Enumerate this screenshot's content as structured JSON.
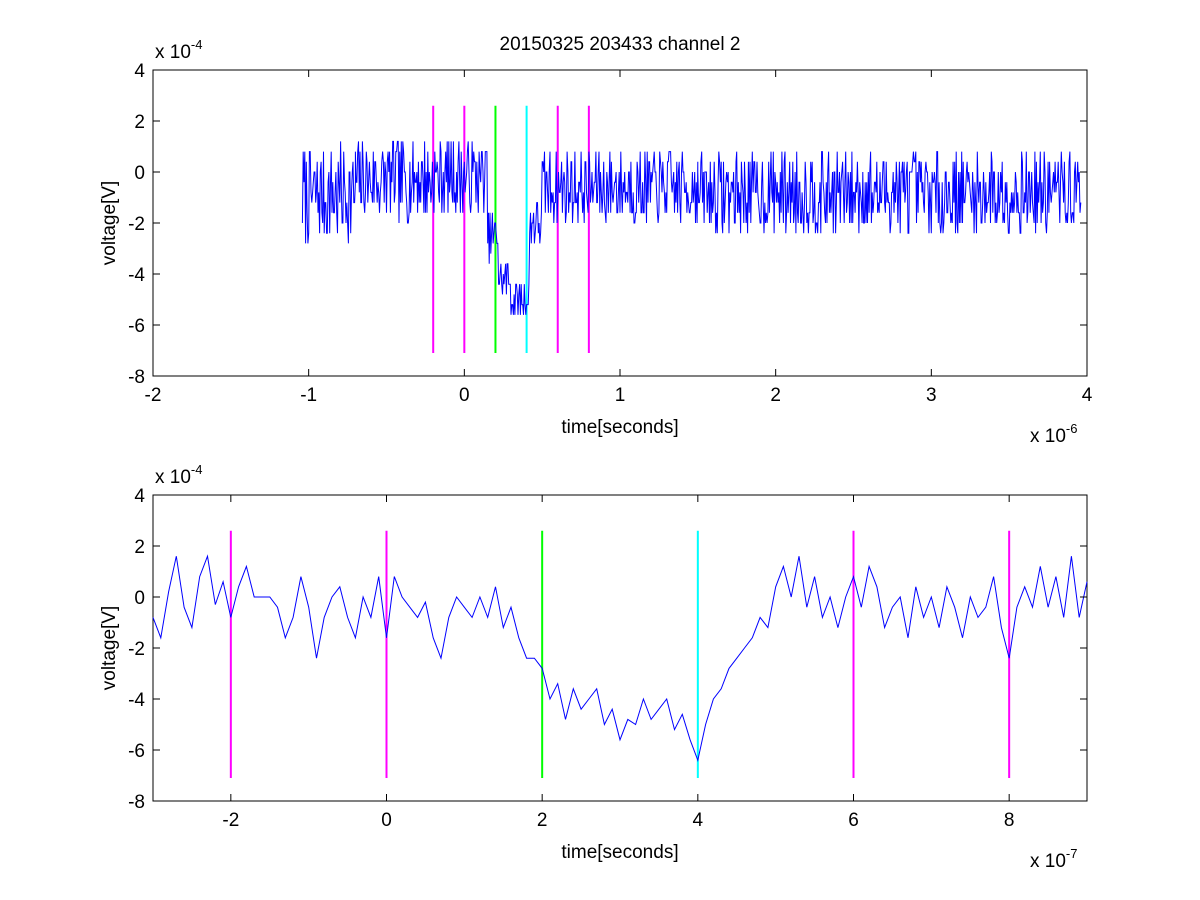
{
  "title": "20150325 203433 channel 2",
  "colors": {
    "signal": "#0000ff",
    "magenta": "#ff00ff",
    "green": "#00ff00",
    "cyan": "#00ffff",
    "axis": "#000000"
  },
  "chart_data": [
    {
      "type": "line",
      "title": "20150325 203433 channel 2",
      "xlabel": "time[seconds]",
      "ylabel": "voltage[V]",
      "x_multiplier": "x 10",
      "x_exponent": "-6",
      "y_multiplier": "x 10",
      "y_exponent": "-4",
      "xlim": [
        -2,
        4
      ],
      "ylim": [
        -8,
        4
      ],
      "x_ticks": [
        "-2",
        "-1",
        "0",
        "1",
        "2",
        "3",
        "4"
      ],
      "y_ticks": [
        "4",
        "2",
        "0",
        "-2",
        "-4",
        "-6",
        "-8"
      ],
      "grid": false,
      "series": [
        {
          "x_range": [
            -1.04,
            3.96
          ],
          "seed": 7,
          "segments": [
            [
              -1.04,
              -0.7,
              -0.9,
              1.2
            ],
            [
              -0.7,
              -0.2,
              -0.3,
              1.0
            ],
            [
              -0.2,
              0.15,
              -0.2,
              0.9
            ],
            [
              0.15,
              0.22,
              -2.5,
              0.6
            ],
            [
              0.22,
              0.3,
              -4.2,
              0.5
            ],
            [
              0.3,
              0.42,
              -5.0,
              0.5
            ],
            [
              0.42,
              0.5,
              -2.0,
              0.7
            ],
            [
              0.5,
              1.5,
              -0.6,
              0.9
            ],
            [
              1.5,
              3.96,
              -0.8,
              1.0
            ]
          ]
        }
      ],
      "markers": [
        {
          "x": -0.2,
          "y": [
            -7.1,
            2.6
          ],
          "color": "#ff00ff"
        },
        {
          "x": 0.0,
          "y": [
            -7.1,
            2.6
          ],
          "color": "#ff00ff"
        },
        {
          "x": 0.2,
          "y": [
            -7.1,
            2.6
          ],
          "color": "#00ff00"
        },
        {
          "x": 0.4,
          "y": [
            -7.1,
            2.6
          ],
          "color": "#00ffff"
        },
        {
          "x": 0.6,
          "y": [
            -7.1,
            2.6
          ],
          "color": "#ff00ff"
        },
        {
          "x": 0.8,
          "y": [
            -7.1,
            2.6
          ],
          "color": "#ff00ff"
        }
      ]
    },
    {
      "type": "line",
      "title": "",
      "xlabel": "time[seconds]",
      "ylabel": "voltage[V]",
      "x_multiplier": "x 10",
      "x_exponent": "-7",
      "y_multiplier": "x 10",
      "y_exponent": "-4",
      "xlim": [
        -3,
        9
      ],
      "ylim": [
        -8,
        4
      ],
      "x_ticks": [
        "-2",
        "0",
        "2",
        "4",
        "6",
        "8"
      ],
      "x_tick_values": [
        -2,
        0,
        2,
        4,
        6,
        8
      ],
      "y_ticks": [
        "4",
        "2",
        "0",
        "-2",
        "-4",
        "-6",
        "-8"
      ],
      "grid": false,
      "series": [
        {
          "points": [
            [
              -3,
              -0.8
            ],
            [
              -2.9,
              -1.6
            ],
            [
              -2.8,
              0.2
            ],
            [
              -2.7,
              1.6
            ],
            [
              -2.6,
              -0.4
            ],
            [
              -2.5,
              -1.2
            ],
            [
              -2.4,
              0.8
            ],
            [
              -2.3,
              1.6
            ],
            [
              -2.2,
              -0.3
            ],
            [
              -2.1,
              0.6
            ],
            [
              -2.0,
              -0.8
            ],
            [
              -1.9,
              0.4
            ],
            [
              -1.8,
              1.2
            ],
            [
              -1.7,
              0.0
            ],
            [
              -1.6,
              0.0
            ],
            [
              -1.5,
              0.0
            ],
            [
              -1.4,
              -0.4
            ],
            [
              -1.3,
              -1.6
            ],
            [
              -1.2,
              -0.8
            ],
            [
              -1.1,
              0.8
            ],
            [
              -1.0,
              -0.4
            ],
            [
              -0.9,
              -2.4
            ],
            [
              -0.8,
              -0.8
            ],
            [
              -0.7,
              0.0
            ],
            [
              -0.6,
              0.4
            ],
            [
              -0.5,
              -0.8
            ],
            [
              -0.4,
              -1.6
            ],
            [
              -0.3,
              0.0
            ],
            [
              -0.2,
              -0.8
            ],
            [
              -0.1,
              0.8
            ],
            [
              0.0,
              -1.6
            ],
            [
              0.1,
              0.8
            ],
            [
              0.2,
              0.0
            ],
            [
              0.3,
              -0.4
            ],
            [
              0.4,
              -0.8
            ],
            [
              0.5,
              -0.2
            ],
            [
              0.6,
              -1.6
            ],
            [
              0.7,
              -2.4
            ],
            [
              0.8,
              -0.8
            ],
            [
              0.9,
              0.0
            ],
            [
              1.0,
              -0.4
            ],
            [
              1.1,
              -0.8
            ],
            [
              1.2,
              0.0
            ],
            [
              1.3,
              -0.8
            ],
            [
              1.4,
              0.4
            ],
            [
              1.5,
              -1.2
            ],
            [
              1.6,
              -0.4
            ],
            [
              1.7,
              -1.6
            ],
            [
              1.8,
              -2.4
            ],
            [
              1.9,
              -2.4
            ],
            [
              2.0,
              -2.8
            ],
            [
              2.1,
              -4.0
            ],
            [
              2.2,
              -3.4
            ],
            [
              2.3,
              -4.8
            ],
            [
              2.4,
              -3.6
            ],
            [
              2.5,
              -4.4
            ],
            [
              2.6,
              -4.0
            ],
            [
              2.7,
              -3.6
            ],
            [
              2.8,
              -5.0
            ],
            [
              2.9,
              -4.4
            ],
            [
              3.0,
              -5.6
            ],
            [
              3.1,
              -4.8
            ],
            [
              3.2,
              -5.0
            ],
            [
              3.3,
              -4.0
            ],
            [
              3.4,
              -4.8
            ],
            [
              3.5,
              -4.4
            ],
            [
              3.6,
              -4.0
            ],
            [
              3.7,
              -5.2
            ],
            [
              3.8,
              -4.6
            ],
            [
              3.9,
              -5.6
            ],
            [
              4.0,
              -6.4
            ],
            [
              4.1,
              -5.0
            ],
            [
              4.2,
              -4.0
            ],
            [
              4.3,
              -3.6
            ],
            [
              4.4,
              -2.8
            ],
            [
              4.5,
              -2.4
            ],
            [
              4.6,
              -2.0
            ],
            [
              4.7,
              -1.6
            ],
            [
              4.8,
              -0.8
            ],
            [
              4.9,
              -1.2
            ],
            [
              5.0,
              0.4
            ],
            [
              5.1,
              1.2
            ],
            [
              5.2,
              0.0
            ],
            [
              5.3,
              1.6
            ],
            [
              5.4,
              -0.4
            ],
            [
              5.5,
              0.8
            ],
            [
              5.6,
              -0.8
            ],
            [
              5.7,
              0.0
            ],
            [
              5.8,
              -1.2
            ],
            [
              5.9,
              0.0
            ],
            [
              6.0,
              0.8
            ],
            [
              6.1,
              -0.4
            ],
            [
              6.2,
              1.2
            ],
            [
              6.3,
              0.4
            ],
            [
              6.4,
              -1.2
            ],
            [
              6.5,
              -0.4
            ],
            [
              6.6,
              0.0
            ],
            [
              6.7,
              -1.6
            ],
            [
              6.8,
              0.4
            ],
            [
              6.9,
              -0.8
            ],
            [
              7.0,
              0.0
            ],
            [
              7.1,
              -1.2
            ],
            [
              7.2,
              0.4
            ],
            [
              7.3,
              -0.4
            ],
            [
              7.4,
              -1.6
            ],
            [
              7.5,
              0.0
            ],
            [
              7.6,
              -0.8
            ],
            [
              7.7,
              -0.4
            ],
            [
              7.8,
              0.8
            ],
            [
              7.9,
              -1.2
            ],
            [
              8.0,
              -2.4
            ],
            [
              8.1,
              -0.4
            ],
            [
              8.2,
              0.4
            ],
            [
              8.3,
              -0.4
            ],
            [
              8.4,
              1.2
            ],
            [
              8.5,
              -0.4
            ],
            [
              8.6,
              0.8
            ],
            [
              8.7,
              -0.8
            ],
            [
              8.8,
              1.6
            ],
            [
              8.9,
              -0.8
            ],
            [
              9.0,
              0.6
            ]
          ]
        }
      ],
      "markers": [
        {
          "x": -2,
          "y": [
            -7.1,
            2.6
          ],
          "color": "#ff00ff"
        },
        {
          "x": 0,
          "y": [
            -7.1,
            2.6
          ],
          "color": "#ff00ff"
        },
        {
          "x": 2,
          "y": [
            -7.1,
            2.6
          ],
          "color": "#00ff00"
        },
        {
          "x": 4,
          "y": [
            -7.1,
            2.6
          ],
          "color": "#00ffff"
        },
        {
          "x": 6,
          "y": [
            -7.1,
            2.6
          ],
          "color": "#ff00ff"
        },
        {
          "x": 8,
          "y": [
            -7.1,
            2.6
          ],
          "color": "#ff00ff"
        }
      ]
    }
  ]
}
